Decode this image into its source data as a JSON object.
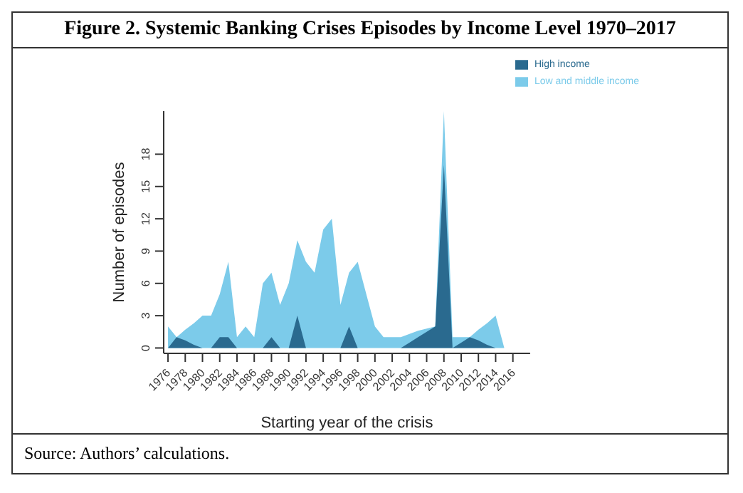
{
  "chart_data": {
    "type": "area",
    "title": "Figure 2. Systemic Banking Crises Episodes by Income Level 1970–2017",
    "xlabel": "Starting year of the crisis",
    "ylabel": "Number of episodes",
    "annotations": [
      "Source: Authors’ calculations."
    ],
    "x": [
      1976,
      1977,
      1978,
      1979,
      1980,
      1981,
      1982,
      1983,
      1984,
      1985,
      1986,
      1987,
      1988,
      1989,
      1990,
      1991,
      1992,
      1993,
      1994,
      1995,
      1996,
      1997,
      1998,
      1999,
      2000,
      2001,
      2002,
      2003,
      2004,
      2005,
      2006,
      2007,
      2008,
      2009,
      2010,
      2011,
      2012,
      2013,
      2014,
      2015
    ],
    "series": [
      {
        "name": "Low and middle income",
        "color": "#7ccbea",
        "values": [
          2,
          1,
          1.7,
          2.3,
          3,
          3,
          5,
          8,
          1,
          2,
          1,
          6,
          7,
          4,
          6,
          10,
          8,
          7,
          11,
          12,
          4,
          7,
          8,
          5,
          2,
          1,
          1,
          1,
          1.3,
          1.6,
          1.8,
          2,
          22,
          1,
          1,
          1,
          1.7,
          2.3,
          3,
          0
        ]
      },
      {
        "name": "High income",
        "color": "#2a6a8f",
        "values": [
          0,
          1,
          0.7,
          0.3,
          0,
          0,
          1,
          1,
          0,
          0,
          0,
          0,
          1,
          0,
          0,
          3,
          0,
          0,
          0,
          0,
          0,
          2,
          0,
          0,
          0,
          0,
          0,
          0,
          0.5,
          1,
          1.5,
          2,
          17,
          0,
          0.5,
          1,
          0.7,
          0.3,
          0,
          null
        ]
      }
    ],
    "xlim": [
      1975.5,
      2018
    ],
    "xticks": [
      1976,
      1978,
      1980,
      1982,
      1984,
      1986,
      1988,
      1990,
      1992,
      1994,
      1996,
      1998,
      2000,
      2002,
      2004,
      2006,
      2008,
      2010,
      2012,
      2014,
      2016
    ],
    "ylim": [
      -0.5,
      22
    ],
    "yticks": [
      0,
      3,
      6,
      9,
      12,
      15,
      18
    ],
    "legend": "top right"
  }
}
